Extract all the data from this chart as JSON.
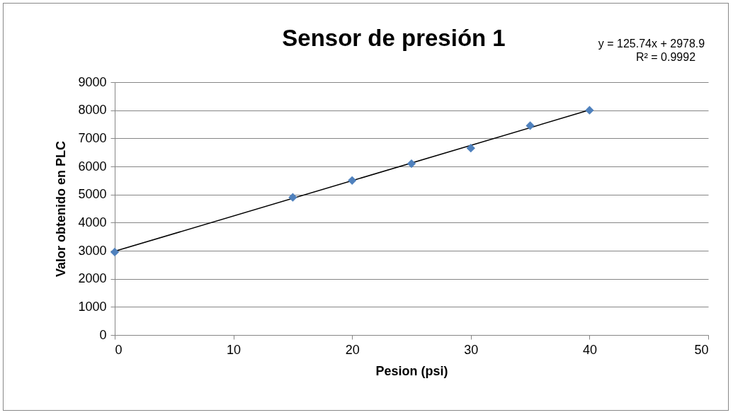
{
  "chart_data": {
    "type": "scatter",
    "title": "Sensor de presión 1",
    "xlabel": "Pesion (psi)",
    "ylabel": "Valor obtenido en PLC",
    "annotations": [
      "y = 125.74x + 2978.9",
      "R² = 0.9992"
    ],
    "x": [
      0,
      15,
      20,
      25,
      30,
      35,
      40
    ],
    "series": [
      {
        "color": "#4f81bd",
        "marker": "diamond",
        "values": [
          2950,
          4900,
          5500,
          6100,
          6650,
          7450,
          8000
        ]
      },
      {
        "type": "line",
        "color": "#000000",
        "x": [
          0,
          40
        ],
        "values": [
          2979,
          8009
        ]
      }
    ],
    "xlim": [
      0,
      50
    ],
    "xticks": [
      0,
      10,
      20,
      30,
      40,
      50
    ],
    "ylim": [
      0,
      9000
    ],
    "yticks": [
      0,
      1000,
      2000,
      3000,
      4000,
      5000,
      6000,
      7000,
      8000,
      9000
    ],
    "grid": "y"
  }
}
